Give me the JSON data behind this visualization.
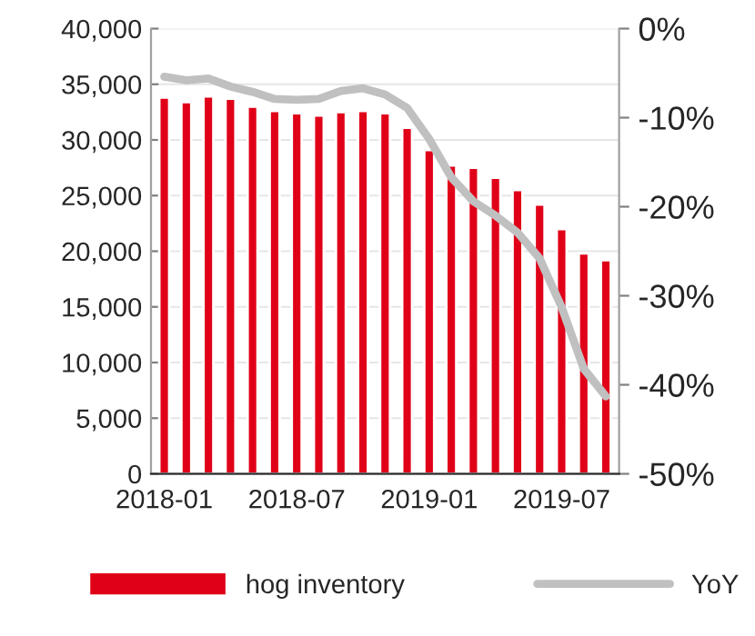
{
  "chart_data": {
    "type": "bar",
    "categories": [
      "2018-01",
      null,
      null,
      null,
      null,
      null,
      "2018-07",
      null,
      null,
      null,
      null,
      null,
      "2019-01",
      null,
      null,
      null,
      null,
      null,
      "2019-07",
      null,
      null
    ],
    "series": [
      {
        "name": "hog inventory",
        "color": "#e00018",
        "values": [
          33800,
          33400,
          33900,
          33700,
          33000,
          32600,
          32400,
          32200,
          32500,
          32600,
          32400,
          31100,
          29100,
          27700,
          27500,
          26600,
          25500,
          24200,
          22000,
          19800,
          19200
        ]
      },
      {
        "name": "YoY",
        "type": "line",
        "axis": "y2",
        "color": "#c0c0c0",
        "values": [
          -5.4,
          -5.8,
          -5.6,
          -6.5,
          -7.1,
          -7.9,
          -8.0,
          -7.9,
          -7.0,
          -6.7,
          -7.4,
          -8.9,
          -12.4,
          -16.7,
          -19.4,
          -21.0,
          -22.9,
          -25.8,
          -31.3,
          -38.2,
          -41.3
        ]
      }
    ],
    "ylim": [
      0,
      40000
    ],
    "yticks": [
      {
        "value": 0,
        "label": "0"
      },
      {
        "value": 5000,
        "label": "5,000"
      },
      {
        "value": 10000,
        "label": "10,000"
      },
      {
        "value": 15000,
        "label": "15,000"
      },
      {
        "value": 20000,
        "label": "20,000"
      },
      {
        "value": 25000,
        "label": "25,000"
      },
      {
        "value": 30000,
        "label": "30,000"
      },
      {
        "value": 35000,
        "label": "35,000"
      },
      {
        "value": 40000,
        "label": "40,000"
      }
    ],
    "y2lim": [
      -50,
      0
    ],
    "y2ticks": [
      {
        "value": -50,
        "label": "-50%"
      },
      {
        "value": -40,
        "label": "-40%"
      },
      {
        "value": -30,
        "label": "-30%"
      },
      {
        "value": -20,
        "label": "-20%"
      },
      {
        "value": -10,
        "label": "-10%"
      },
      {
        "value": 0,
        "label": "0%"
      }
    ],
    "grid": "y",
    "legend": "bottom",
    "marker": "none",
    "line_style": "solid"
  }
}
